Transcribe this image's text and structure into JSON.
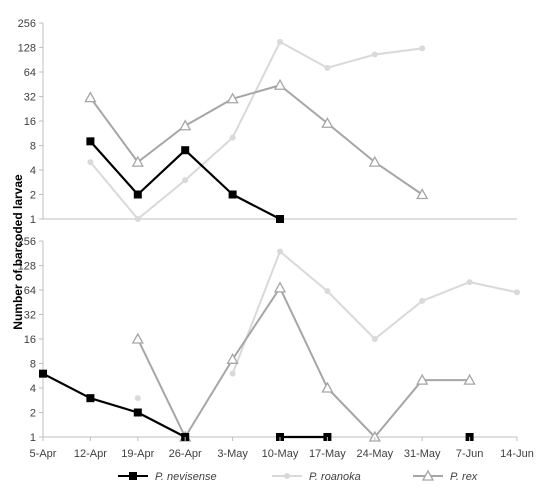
{
  "chart_data": [
    {
      "type": "line",
      "panel": "top",
      "ylabel": "Number of barcoded larvae",
      "yscale": "log2",
      "ylim": [
        1,
        256
      ],
      "yticks": [
        "1",
        "2",
        "4",
        "8",
        "16",
        "32",
        "64",
        "128",
        "256"
      ],
      "categories": [
        "5-Apr",
        "12-Apr",
        "19-Apr",
        "26-Apr",
        "3-May",
        "10-May",
        "17-May",
        "24-May",
        "31-May",
        "7-Jun",
        "14-Jun"
      ],
      "series": [
        {
          "name": "P. roanoka",
          "color": "#d9d9d9",
          "values": [
            null,
            5,
            1,
            3,
            10,
            150,
            72,
            105,
            125,
            null,
            null
          ]
        },
        {
          "name": "P. rex",
          "color": "#a6a6a6",
          "values": [
            null,
            31,
            5,
            14,
            30,
            44,
            15,
            5,
            2,
            null,
            null
          ]
        },
        {
          "name": "P. nevisense",
          "color": "#000000",
          "values": [
            null,
            9,
            2,
            7,
            2,
            1,
            null,
            null,
            null,
            null,
            null
          ]
        }
      ]
    },
    {
      "type": "line",
      "panel": "bottom",
      "yscale": "log2",
      "ylim": [
        1,
        256
      ],
      "yticks": [
        "1",
        "2",
        "4",
        "8",
        "16",
        "32",
        "64",
        "128",
        "256"
      ],
      "categories": [
        "5-Apr",
        "12-Apr",
        "19-Apr",
        "26-Apr",
        "3-May",
        "10-May",
        "17-May",
        "24-May",
        "31-May",
        "7-Jun",
        "14-Jun"
      ],
      "series": [
        {
          "name": "P. roanoka",
          "color": "#d9d9d9",
          "values": [
            null,
            null,
            3,
            null,
            6,
            190,
            62,
            16,
            47,
            80,
            60
          ]
        },
        {
          "name": "P. rex",
          "color": "#a6a6a6",
          "values": [
            null,
            null,
            16,
            1,
            9,
            68,
            4,
            1,
            5,
            5,
            null
          ]
        },
        {
          "name": "P. nevisense",
          "color": "#000000",
          "values": [
            6,
            3,
            2,
            1,
            null,
            1,
            1,
            null,
            null,
            1,
            null
          ]
        }
      ]
    }
  ],
  "legend": {
    "placement": "bottom",
    "items": [
      {
        "label": "P. nevisense",
        "color": "#000000",
        "marker": "square"
      },
      {
        "label": "P. roanoka",
        "color": "#d9d9d9",
        "marker": "circle"
      },
      {
        "label": "P. rex",
        "color": "#a6a6a6",
        "marker": "triangle"
      }
    ]
  }
}
